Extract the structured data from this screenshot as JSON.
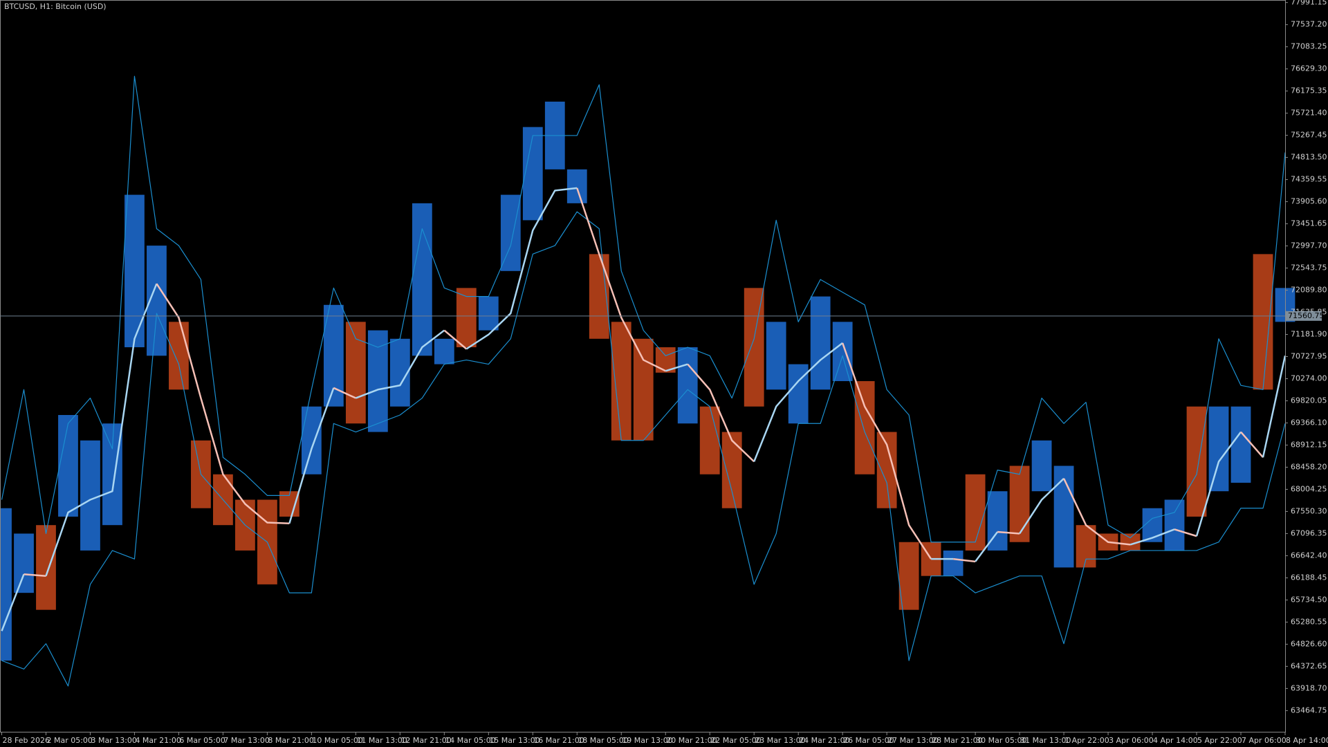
{
  "chart_data": {
    "type": "ohlc-bands",
    "title": "BTCUSD, H1:  Bitcoin (USD)",
    "categories": [
      "28 Feb 2026",
      null,
      "2 Mar 05:00",
      null,
      "3 Mar 13:00",
      null,
      "4 Mar 21:00",
      null,
      "6 Mar 05:00",
      null,
      "7 Mar 13:00",
      null,
      "8 Mar 21:00",
      null,
      "10 Mar 05:00",
      null,
      "11 Mar 13:00",
      null,
      "12 Mar 21:00",
      null,
      "14 Mar 05:00",
      null,
      "15 Mar 13:00",
      null,
      "16 Mar 21:00",
      null,
      "18 Mar 05:00",
      null,
      "19 Mar 13:00",
      null,
      "20 Mar 21:00",
      null,
      "22 Mar 05:00",
      null,
      "23 Mar 13:00",
      null,
      "24 Mar 21:00",
      null,
      "26 Mar 05:00",
      null,
      "27 Mar 13:00",
      null,
      "28 Mar 21:00",
      null,
      "30 Mar 05:00",
      null,
      "31 Mar 13:00",
      null,
      "1 Apr 22:00",
      null,
      "3 Apr 06:00",
      null,
      "4 Apr 14:00",
      null,
      "5 Apr 22:00",
      null,
      "7 Apr 06:00",
      null,
      "8 Apr 14:00"
    ],
    "high": [
      67617,
      67096,
      67270,
      69529,
      69007,
      69355,
      74047,
      73004,
      71440,
      69007,
      68312,
      67791,
      67791,
      67965,
      69703,
      71788,
      71440,
      71266,
      71093,
      73873,
      71093,
      72135,
      71961,
      74047,
      75437,
      75958,
      74568,
      72830,
      71440,
      71093,
      70919,
      70919,
      69703,
      69181,
      72135,
      71440,
      70571,
      71961,
      71440,
      70224,
      69181,
      66922,
      66922,
      66749,
      68312,
      67965,
      68486,
      69007,
      68486,
      67270,
      67096,
      67096,
      67617,
      67791,
      69703,
      69703,
      69703,
      72830,
      72135
    ],
    "low": [
      64490,
      65880,
      65532,
      67444,
      66749,
      67270,
      70919,
      70745,
      70050,
      67617,
      67270,
      66749,
      66054,
      67444,
      68312,
      69703,
      69355,
      69181,
      69703,
      70745,
      70571,
      70919,
      71266,
      72483,
      73525,
      74568,
      73873,
      71093,
      69007,
      69007,
      70398,
      69355,
      68312,
      67617,
      69703,
      70050,
      69355,
      70050,
      70224,
      68312,
      67617,
      65532,
      66227,
      66227,
      66749,
      66749,
      66922,
      67965,
      66401,
      66401,
      66749,
      66749,
      66922,
      66749,
      67444,
      67965,
      68139,
      70050,
      71440
    ],
    "ma": [
      65098,
      66262,
      66227,
      67530,
      67791,
      67965,
      71093,
      72222,
      71527,
      69876,
      68312,
      67704,
      67322,
      67305,
      68834,
      70085,
      69876,
      70050,
      70137,
      70919,
      71266,
      70884,
      71179,
      71614,
      73316,
      74134,
      74185,
      72830,
      71527,
      70658,
      70433,
      70571,
      70050,
      69007,
      68573,
      69703,
      70224,
      70658,
      71006,
      69703,
      68920,
      67270,
      66575,
      66575,
      66523,
      67131,
      67096,
      67791,
      68226,
      67270,
      66922,
      66870,
      67009,
      67183,
      67044,
      68573,
      69181,
      68660,
      70745
    ],
    "upper_band": [
      67791,
      70050,
      67096,
      69355,
      69876,
      68834,
      76479,
      73351,
      73004,
      72309,
      68660,
      68312,
      67878,
      67878,
      70050,
      72135,
      71093,
      70919,
      71093,
      73351,
      72135,
      71961,
      71961,
      73004,
      75263,
      75263,
      75263,
      76305,
      72483,
      71266,
      70745,
      70919,
      70745,
      69876,
      71093,
      73525,
      71440,
      72309,
      72048,
      71788,
      70050,
      69529,
      66922,
      66922,
      66922,
      68399,
      68312,
      69876,
      69355,
      69790,
      67270,
      67009,
      67409,
      67530,
      68312,
      71093,
      70137,
      70050,
      74915
    ],
    "lower_band": [
      64490,
      64316,
      64837,
      63969,
      66054,
      66749,
      66575,
      71614,
      70571,
      68312,
      67791,
      67270,
      66922,
      65880,
      65880,
      69355,
      69181,
      69355,
      69529,
      69876,
      70571,
      70658,
      70571,
      71093,
      72830,
      73004,
      73699,
      73351,
      69007,
      69007,
      69529,
      70050,
      69703,
      67965,
      66054,
      67096,
      69355,
      69355,
      70745,
      69181,
      68139,
      64490,
      66227,
      66227,
      65880,
      66054,
      66227,
      66227,
      64837,
      66575,
      66575,
      66749,
      66749,
      66749,
      66749,
      66922,
      67617,
      67617,
      69355
    ],
    "up_color": "#1f6fd6",
    "down_color": "#c6461b",
    "ma_up_color": "#a9d6f2",
    "ma_down_color": "#f6c0b6",
    "band_color": "#1b8fd0",
    "current_price": 71560.75,
    "ylim": [
      63030,
      78043
    ],
    "yticks": [
      77991.15,
      {
        "value": 77537.2,
        "label": "77537.20"
      },
      77083.25,
      {
        "value": 76629.3,
        "label": "76629.30"
      },
      76175.35,
      {
        "value": 75721.4,
        "label": "75721.40"
      },
      75267.45,
      {
        "value": 74813.5,
        "label": "74813.50"
      },
      74359.55,
      {
        "value": 73905.6,
        "label": "73905.60"
      },
      73451.65,
      {
        "value": 72997.7,
        "label": "72997.70"
      },
      72543.75,
      {
        "value": 72089.8,
        "label": "72089.80"
      },
      71635.85,
      {
        "value": 71181.9,
        "label": "71181.90"
      },
      70727.95,
      {
        "value": 70274,
        "label": "70274.00"
      },
      69820.05,
      {
        "value": 69366.1,
        "label": "69366.10"
      },
      68912.15,
      {
        "value": 68458.2,
        "label": "68458.20"
      },
      68004.25,
      {
        "value": 67550.3,
        "label": "67550.30"
      },
      67096.35,
      {
        "value": 66642.4,
        "label": "66642.40"
      },
      66188.45,
      {
        "value": 65734.5,
        "label": "65734.50"
      },
      65280.55,
      {
        "value": 64826.6,
        "label": "64826.60"
      },
      64372.65,
      {
        "value": 63918.7,
        "label": "63918.70"
      },
      63464.75
    ]
  }
}
